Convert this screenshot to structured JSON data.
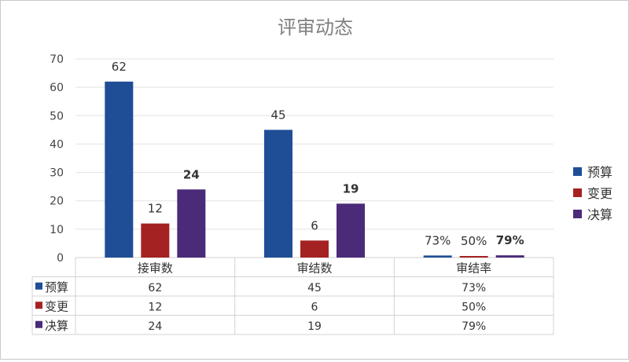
{
  "chart_data": {
    "type": "bar",
    "title": "评审动态",
    "categories": [
      "接审数",
      "审结数",
      "审结率"
    ],
    "series": [
      {
        "name": "预算",
        "color": "#1f4e96",
        "values": [
          62,
          45,
          0.73
        ],
        "labels": [
          "62",
          "45",
          "73%"
        ],
        "table": [
          "62",
          "45",
          "73%"
        ]
      },
      {
        "name": "变更",
        "color": "#a52222",
        "values": [
          12,
          6,
          0.5
        ],
        "labels": [
          "12",
          "6",
          "50%"
        ],
        "table": [
          "12",
          "6",
          "50%"
        ]
      },
      {
        "name": "决算",
        "color": "#4b2a7a",
        "values": [
          24,
          19,
          0.79
        ],
        "labels": [
          "24",
          "19",
          "79%"
        ],
        "table": [
          "24",
          "19",
          "79%"
        ]
      }
    ],
    "ylim": [
      0,
      70
    ],
    "yticks": [
      0,
      10,
      20,
      30,
      40,
      50,
      60,
      70
    ],
    "grid": true,
    "legend_position": "right",
    "data_table": true
  }
}
